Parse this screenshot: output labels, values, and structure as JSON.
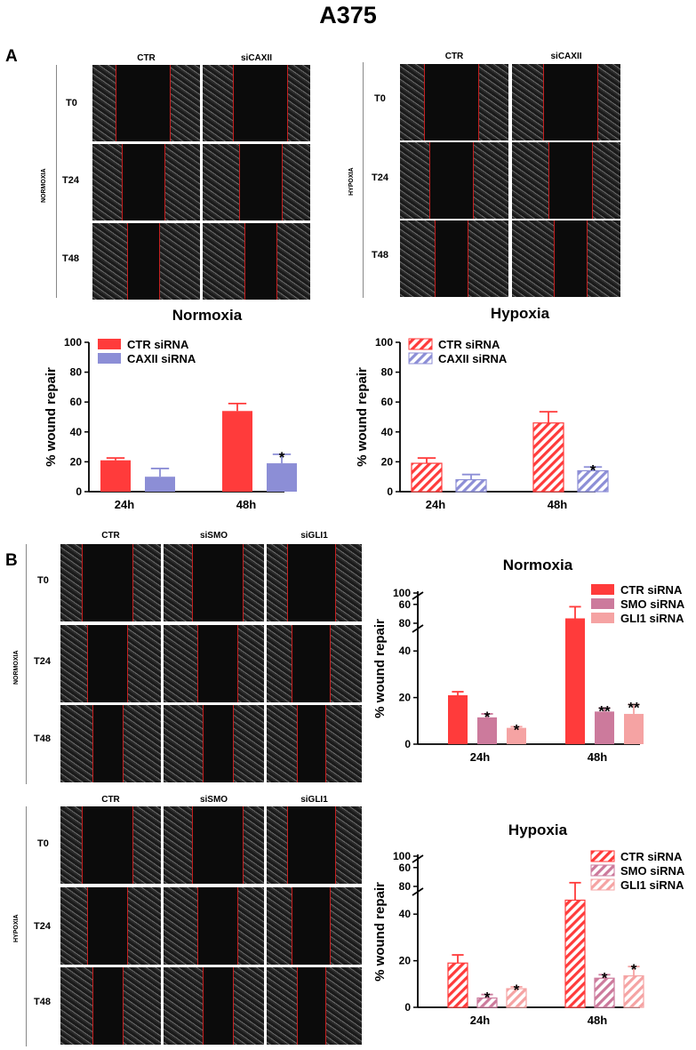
{
  "figure_title": "A375",
  "panel_a": {
    "label": "A",
    "normoxia": {
      "side_label": "NORMOXIA",
      "columns": [
        "CTR",
        "siCAXII"
      ],
      "rows": [
        "T0",
        "T24",
        "T48"
      ]
    },
    "hypoxia": {
      "side_label": "HYPOXIA",
      "columns": [
        "CTR",
        "siCAXII"
      ],
      "rows": [
        "T0",
        "T24",
        "T48"
      ]
    }
  },
  "panel_b": {
    "label": "B",
    "normoxia": {
      "side_label": "NORMOXIA",
      "columns": [
        "CTR",
        "siSMO",
        "siGLI1"
      ],
      "rows": [
        "T0",
        "T24",
        "T48"
      ]
    },
    "hypoxia": {
      "side_label": "HYPOXIA",
      "columns": [
        "CTR",
        "siSMO",
        "siGLI1"
      ],
      "rows": [
        "T0",
        "T24",
        "T48"
      ]
    }
  },
  "colors": {
    "red": "#ff3b3b",
    "blue": "#8c8ed6",
    "mauve": "#cc7a9c",
    "pink": "#f5a3a3",
    "edge_red": "#c41e1e"
  },
  "chart_data": [
    {
      "id": "a-normoxia",
      "type": "bar",
      "title": "Normoxia",
      "ylabel": "% wound repair",
      "xlabel": "",
      "categories": [
        "24h",
        "48h"
      ],
      "ylim": [
        0,
        100
      ],
      "yticks": [
        "0",
        "20",
        "40",
        "60",
        "80",
        "100"
      ],
      "legend_position": "top-left",
      "series": [
        {
          "name": "CTR siRNA",
          "color": "#ff3b3b",
          "hatch": false,
          "values": [
            21,
            54
          ],
          "errors": [
            1.5,
            5
          ],
          "stars": [
            "",
            ""
          ]
        },
        {
          "name": "CAXII siRNA",
          "color": "#8c8ed6",
          "hatch": false,
          "values": [
            10,
            19
          ],
          "errors": [
            5.5,
            6
          ],
          "stars": [
            "",
            "*"
          ]
        }
      ]
    },
    {
      "id": "a-hypoxia",
      "type": "bar",
      "title": "Hypoxia",
      "ylabel": "% wound repair",
      "xlabel": "",
      "categories": [
        "24h",
        "48h"
      ],
      "ylim": [
        0,
        100
      ],
      "yticks": [
        "0",
        "20",
        "40",
        "60",
        "80",
        "100"
      ],
      "legend_position": "top-left",
      "series": [
        {
          "name": "CTR siRNA",
          "color": "#ff3b3b",
          "hatch": true,
          "values": [
            19,
            46
          ],
          "errors": [
            3.5,
            7.5
          ],
          "stars": [
            "",
            ""
          ]
        },
        {
          "name": "CAXII siRNA",
          "color": "#8c8ed6",
          "hatch": true,
          "values": [
            8,
            14
          ],
          "errors": [
            3.5,
            2.5
          ],
          "stars": [
            "",
            "*"
          ]
        }
      ]
    },
    {
      "id": "b-normoxia",
      "type": "bar",
      "title": "Normoxia",
      "ylabel": "% wound repair",
      "xlabel": "",
      "categories": [
        "24h",
        "48h"
      ],
      "ylim": [
        0,
        100
      ],
      "axis_break": [
        63,
        80
      ],
      "yticks": [
        "0",
        "20",
        "40",
        "60",
        "80",
        "100"
      ],
      "legend_position": "top-right",
      "series": [
        {
          "name": "CTR siRNA",
          "color": "#ff3b3b",
          "hatch": false,
          "values": [
            21,
            54
          ],
          "errors": [
            1.5,
            5
          ],
          "stars": [
            "",
            ""
          ]
        },
        {
          "name": "SMO siRNA",
          "color": "#cc7a9c",
          "hatch": false,
          "values": [
            11.5,
            14
          ],
          "errors": [
            1.5,
            1.5
          ],
          "stars": [
            "*",
            "**"
          ]
        },
        {
          "name": "GLI1 siRNA",
          "color": "#f5a3a3",
          "hatch": false,
          "values": [
            7,
            13
          ],
          "errors": [
            0.5,
            4
          ],
          "stars": [
            "*",
            "**"
          ]
        }
      ]
    },
    {
      "id": "b-hypoxia",
      "type": "bar",
      "title": "Hypoxia",
      "ylabel": "% wound repair",
      "xlabel": "",
      "categories": [
        "24h",
        "48h"
      ],
      "ylim": [
        0,
        100
      ],
      "axis_break": [
        63,
        80
      ],
      "yticks": [
        "0",
        "20",
        "40",
        "60",
        "80",
        "100"
      ],
      "legend_position": "top-right",
      "series": [
        {
          "name": "CTR siRNA",
          "color": "#ff3b3b",
          "hatch": true,
          "values": [
            19,
            46
          ],
          "errors": [
            3.5,
            7.5
          ],
          "stars": [
            "",
            ""
          ]
        },
        {
          "name": "SMO siRNA",
          "color": "#cc7a9c",
          "hatch": true,
          "values": [
            4,
            12.5
          ],
          "errors": [
            1.5,
            1.5
          ],
          "stars": [
            "*",
            "*"
          ]
        },
        {
          "name": "GLI1 siRNA",
          "color": "#f5a3a3",
          "hatch": true,
          "values": [
            8,
            13.5
          ],
          "errors": [
            0.8,
            4
          ],
          "stars": [
            "*",
            "*"
          ]
        }
      ]
    }
  ]
}
